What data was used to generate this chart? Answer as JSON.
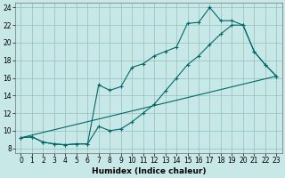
{
  "title": "",
  "xlabel": "Humidex (Indice chaleur)",
  "bg_color": "#c8e8e8",
  "grid_color": "#90c0c0",
  "line_color": "#006868",
  "xlim": [
    -0.5,
    23.5
  ],
  "ylim": [
    7.5,
    24.5
  ],
  "xticks": [
    0,
    1,
    2,
    3,
    4,
    5,
    6,
    7,
    8,
    9,
    10,
    11,
    12,
    13,
    14,
    15,
    16,
    17,
    18,
    19,
    20,
    21,
    22,
    23
  ],
  "yticks": [
    8,
    10,
    12,
    14,
    16,
    18,
    20,
    22,
    24
  ],
  "line1_x": [
    0,
    1,
    2,
    3,
    4,
    5,
    6,
    7,
    8,
    9,
    10,
    11,
    12,
    13,
    14,
    15,
    16,
    17,
    18,
    19,
    20,
    21,
    22,
    23
  ],
  "line1_y": [
    9.2,
    9.3,
    8.7,
    8.5,
    8.4,
    8.5,
    8.5,
    10.5,
    10.0,
    10.2,
    11.0,
    12.0,
    13.0,
    14.5,
    16.0,
    17.5,
    18.5,
    19.8,
    21.0,
    22.0,
    22.0,
    19.0,
    17.5,
    16.2
  ],
  "line2_x": [
    0,
    1,
    2,
    3,
    4,
    5,
    6,
    7,
    8,
    9,
    10,
    11,
    12,
    13,
    14,
    15,
    16,
    17,
    18,
    19,
    20,
    21,
    22,
    23
  ],
  "line2_y": [
    9.2,
    9.3,
    8.7,
    8.5,
    8.4,
    8.5,
    8.5,
    15.2,
    14.6,
    15.0,
    17.2,
    17.6,
    18.5,
    19.0,
    19.5,
    22.2,
    22.3,
    24.0,
    22.5,
    22.5,
    22.0,
    19.0,
    17.5,
    16.2
  ],
  "line3_x": [
    0,
    23
  ],
  "line3_y": [
    9.2,
    16.2
  ]
}
